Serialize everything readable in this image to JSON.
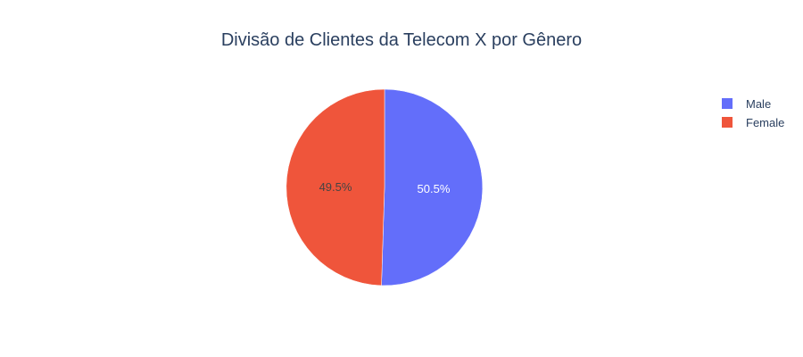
{
  "chart_data": {
    "type": "pie",
    "title": "Divisão de Clientes da Telecom X por Gênero",
    "labels": [
      "Male",
      "Female"
    ],
    "values": [
      50.5,
      49.5
    ],
    "value_labels": [
      "50.5%",
      "49.5%"
    ],
    "colors": [
      "#636efa",
      "#ef553b"
    ],
    "label_colors": [
      "#ffffff",
      "#444444"
    ],
    "start_angle_deg": 0,
    "direction": "clockwise",
    "legend": {
      "placement": "top-right",
      "entries": [
        "Male",
        "Female"
      ]
    }
  }
}
